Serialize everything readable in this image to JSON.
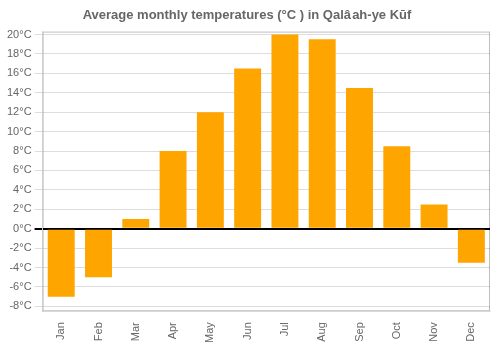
{
  "chart_data": {
    "type": "bar",
    "title": "Average monthly temperatures (°C ) in Qalâ ah-ye Kūf",
    "categories": [
      "Jan",
      "Feb",
      "Mar",
      "Apr",
      "May",
      "Jun",
      "Jul",
      "Aug",
      "Sep",
      "Oct",
      "Nov",
      "Dec"
    ],
    "values": [
      -7,
      -5,
      1,
      8,
      12,
      16.5,
      20,
      19.5,
      14.5,
      8.5,
      2.5,
      -3.5
    ],
    "color": "#FFA500",
    "ylim": [
      -8.5,
      20.3
    ],
    "yticks": [
      {
        "value": -8,
        "label": "-8°C"
      },
      {
        "value": -6,
        "label": "-6°C"
      },
      {
        "value": -4,
        "label": "-4°C"
      },
      {
        "value": -2,
        "label": "-2°C"
      },
      {
        "value": 0,
        "label": "0°C"
      },
      {
        "value": 2,
        "label": "2°C"
      },
      {
        "value": 4,
        "label": "4°C"
      },
      {
        "value": 6,
        "label": "6°C"
      },
      {
        "value": 8,
        "label": "8°C"
      },
      {
        "value": 10,
        "label": "10°C"
      },
      {
        "value": 12,
        "label": "12°C"
      },
      {
        "value": 14,
        "label": "14°C"
      },
      {
        "value": 16,
        "label": "16°C"
      },
      {
        "value": 18,
        "label": "18°C"
      },
      {
        "value": 20,
        "label": "20°C"
      }
    ],
    "grid": true
  }
}
